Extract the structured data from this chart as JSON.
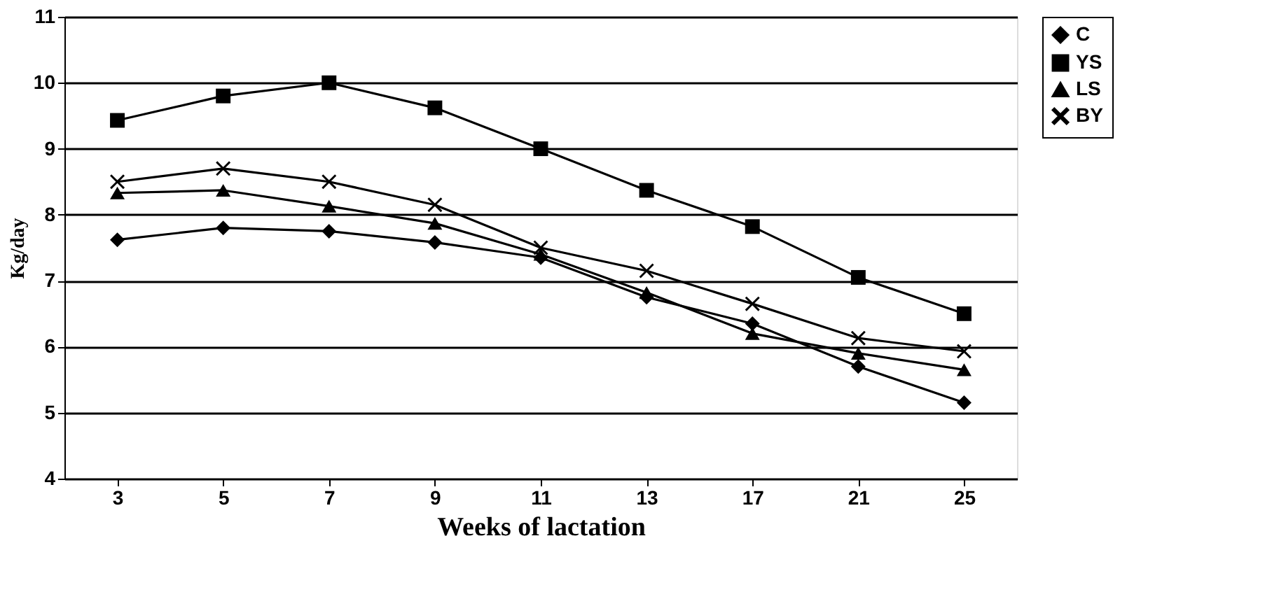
{
  "chart_data": {
    "type": "line",
    "xlabel": "Weeks of lactation",
    "ylabel": "Kg/day",
    "categories": [
      "3",
      "5",
      "7",
      "9",
      "11",
      "13",
      "17",
      "21",
      "25"
    ],
    "series": [
      {
        "name": "C",
        "color": "#000000",
        "marker": "diamond",
        "values": [
          7.62,
          7.8,
          7.75,
          7.58,
          7.35,
          6.75,
          6.35,
          5.7,
          5.15
        ]
      },
      {
        "name": "YS",
        "color": "#000000",
        "marker": "square",
        "values": [
          9.43,
          9.8,
          10.0,
          9.62,
          9.0,
          8.37,
          7.82,
          7.05,
          6.5
        ]
      },
      {
        "name": "LS",
        "color": "#000000",
        "marker": "triangle",
        "values": [
          8.33,
          8.37,
          8.13,
          7.87,
          7.4,
          6.82,
          6.2,
          5.9,
          5.65
        ]
      },
      {
        "name": "BY",
        "color": "#000000",
        "marker": "cross",
        "values": [
          8.5,
          8.7,
          8.5,
          8.15,
          7.5,
          7.15,
          6.65,
          6.13,
          5.93
        ]
      }
    ],
    "ylim": [
      4,
      11
    ],
    "yticks": [
      4,
      5,
      6,
      7,
      8,
      9,
      10,
      11
    ],
    "grid": "y",
    "legend": "right",
    "line_style": "solid"
  }
}
